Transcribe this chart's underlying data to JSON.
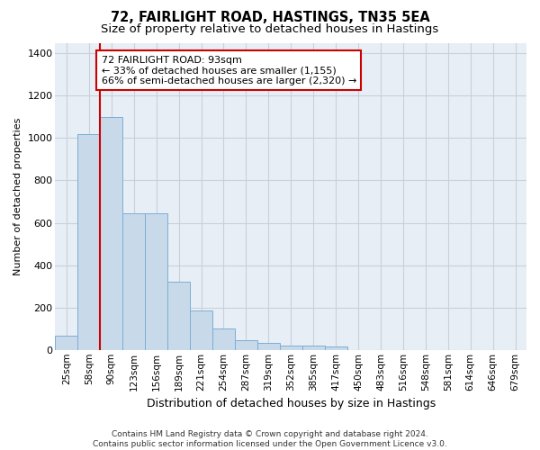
{
  "title": "72, FAIRLIGHT ROAD, HASTINGS, TN35 5EA",
  "subtitle": "Size of property relative to detached houses in Hastings",
  "xlabel": "Distribution of detached houses by size in Hastings",
  "ylabel": "Number of detached properties",
  "categories": [
    "25sqm",
    "58sqm",
    "90sqm",
    "123sqm",
    "156sqm",
    "189sqm",
    "221sqm",
    "254sqm",
    "287sqm",
    "319sqm",
    "352sqm",
    "385sqm",
    "417sqm",
    "450sqm",
    "483sqm",
    "516sqm",
    "548sqm",
    "581sqm",
    "614sqm",
    "646sqm",
    "679sqm"
  ],
  "values": [
    65,
    1020,
    1100,
    645,
    645,
    320,
    185,
    100,
    45,
    35,
    22,
    22,
    15,
    0,
    0,
    0,
    0,
    0,
    0,
    0,
    0
  ],
  "bar_color": "#c8d9ea",
  "bar_edge_color": "#7bafd4",
  "vline_color": "#cc0000",
  "vline_x_index": 2,
  "annotation_text": "72 FAIRLIGHT ROAD: 93sqm\n← 33% of detached houses are smaller (1,155)\n66% of semi-detached houses are larger (2,320) →",
  "annotation_box_facecolor": "#ffffff",
  "annotation_box_edgecolor": "#cc0000",
  "ylim": [
    0,
    1450
  ],
  "yticks": [
    0,
    200,
    400,
    600,
    800,
    1000,
    1200,
    1400
  ],
  "plot_bg_color": "#e8eef5",
  "grid_color": "#c8d0da",
  "title_fontsize": 10.5,
  "subtitle_fontsize": 9.5,
  "ylabel_fontsize": 8,
  "xlabel_fontsize": 9,
  "tick_fontsize": 7.5,
  "annot_fontsize": 8,
  "footer_fontsize": 6.5,
  "footer": "Contains HM Land Registry data © Crown copyright and database right 2024.\nContains public sector information licensed under the Open Government Licence v3.0."
}
